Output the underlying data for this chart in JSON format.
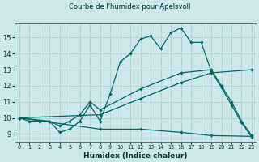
{
  "title": "Courbe de l'humidex pour Apelsvoll",
  "xlabel": "Humidex (Indice chaleur)",
  "xlim": [
    -0.5,
    23.5
  ],
  "ylim": [
    8.5,
    15.9
  ],
  "yticks": [
    9,
    10,
    11,
    12,
    13,
    14,
    15
  ],
  "xticks": [
    0,
    1,
    2,
    3,
    4,
    5,
    6,
    7,
    8,
    9,
    10,
    11,
    12,
    13,
    14,
    15,
    16,
    17,
    18,
    19,
    20,
    21,
    22,
    23
  ],
  "background_color": "#cce8e8",
  "grid_color": "#aacccc",
  "line_color": "#006666",
  "line1_x": [
    0,
    1,
    2,
    3,
    4,
    5,
    6,
    7,
    8,
    9,
    10,
    11,
    12,
    13,
    14,
    15,
    16,
    17,
    18,
    19,
    20,
    21,
    22,
    23
  ],
  "line1_y": [
    10.0,
    9.8,
    9.8,
    9.8,
    9.1,
    9.3,
    9.8,
    10.8,
    9.8,
    11.5,
    13.5,
    14.0,
    14.9,
    15.1,
    14.3,
    15.3,
    15.6,
    14.7,
    14.7,
    12.9,
    11.9,
    10.8,
    9.7,
    8.8
  ],
  "line2_x": [
    0,
    3,
    4,
    5,
    6,
    7,
    8,
    12,
    16,
    19,
    20,
    21,
    22,
    23
  ],
  "line2_y": [
    10.0,
    9.8,
    9.5,
    9.8,
    10.2,
    11.0,
    10.5,
    11.8,
    12.8,
    13.0,
    12.0,
    11.0,
    9.8,
    8.9
  ],
  "line3_x": [
    0,
    8,
    12,
    16,
    19,
    23
  ],
  "line3_y": [
    10.0,
    10.2,
    11.2,
    12.2,
    12.8,
    13.0
  ],
  "line4_x": [
    0,
    8,
    12,
    16,
    19,
    23
  ],
  "line4_y": [
    10.0,
    9.3,
    9.3,
    9.1,
    8.9,
    8.85
  ]
}
